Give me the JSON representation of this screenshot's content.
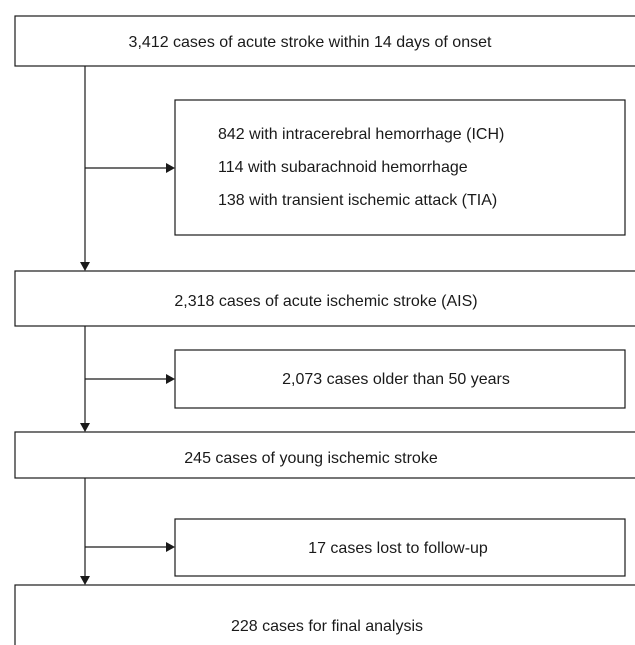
{
  "nodes": [
    {
      "label": "3,412 cases of acute stroke within 14 days of onset"
    },
    {
      "lines": [
        "842 with intracerebral hemorrhage (ICH)",
        "114 with subarachnoid hemorrhage",
        "138 with transient ischemic attack (TIA)"
      ]
    },
    {
      "label": "2,318 cases of acute ischemic stroke (AIS)"
    },
    {
      "label": "2,073 cases older than 50 years"
    },
    {
      "label": "245 cases of young ischemic stroke"
    },
    {
      "label": "17 cases lost to follow-up"
    },
    {
      "label": "228 cases for final analysis"
    }
  ]
}
